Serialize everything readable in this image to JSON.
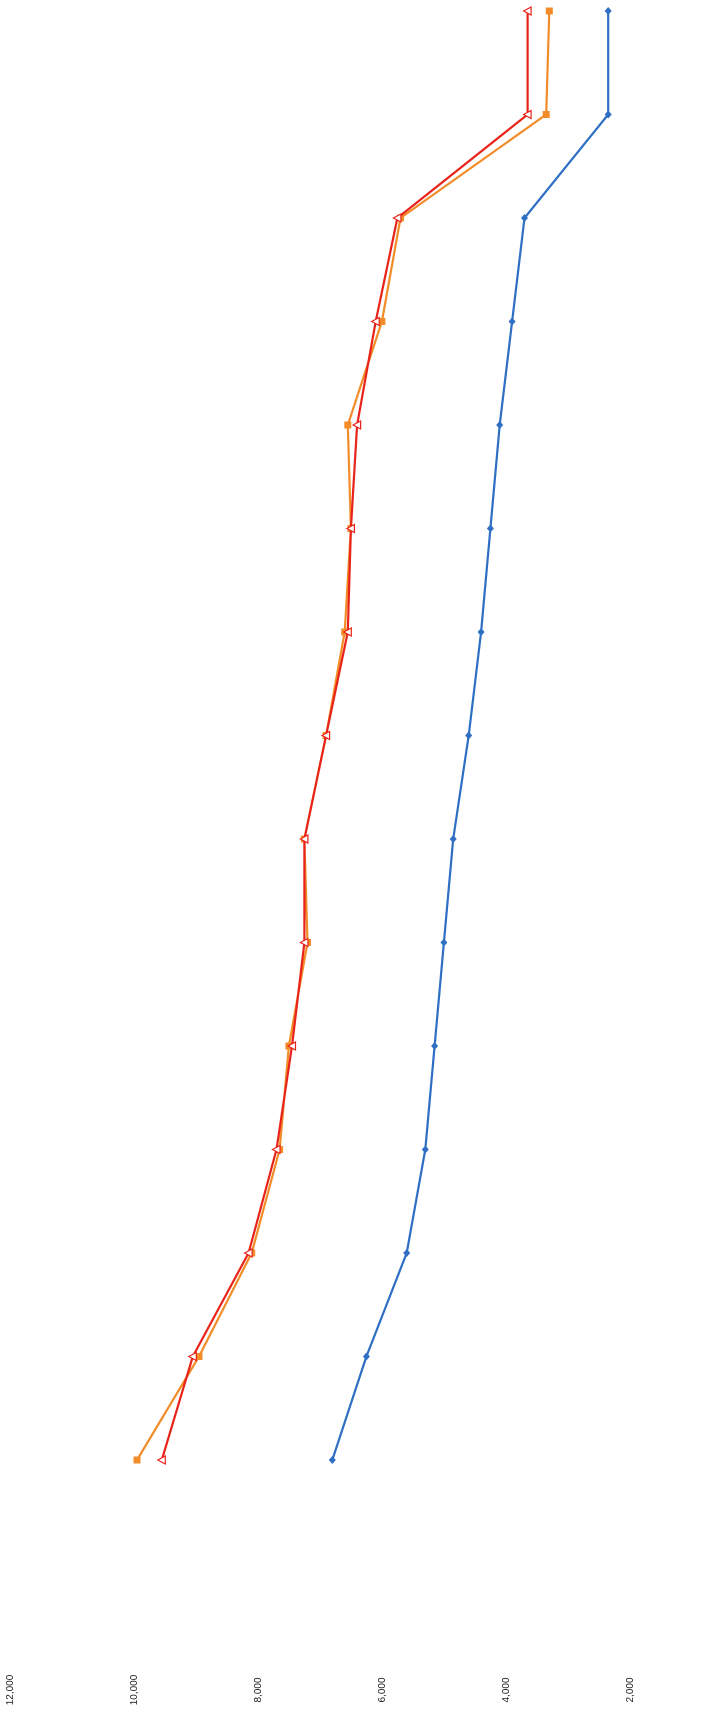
{
  "chart_data": {
    "type": "line",
    "orientation": "rotated",
    "ylim": [
      2000,
      12000
    ],
    "yticks": [
      "2,000",
      "4,000",
      "6,000",
      "8,000",
      "10,000",
      "12,000"
    ],
    "grid": false,
    "x_count": 15,
    "series": [
      {
        "color": "#f28c28",
        "marker": "square",
        "values": [
          10000,
          9000,
          8150,
          7700,
          7550,
          7250,
          7300,
          6950,
          6650,
          6550,
          6600,
          6050,
          5750,
          3400,
          3350
        ]
      },
      {
        "color": "#e8241a",
        "marker": "triangle",
        "values": [
          9600,
          9100,
          8200,
          7750,
          7500,
          7300,
          7300,
          6950,
          6600,
          6550,
          6450,
          6150,
          5800,
          3700,
          3700
        ]
      },
      {
        "color": "#2e6fc4",
        "marker": "diamond",
        "values": [
          6850,
          6300,
          5650,
          5350,
          5200,
          5050,
          4900,
          4650,
          4450,
          4300,
          4150,
          3950,
          3750,
          2400,
          2400
        ]
      }
    ]
  }
}
